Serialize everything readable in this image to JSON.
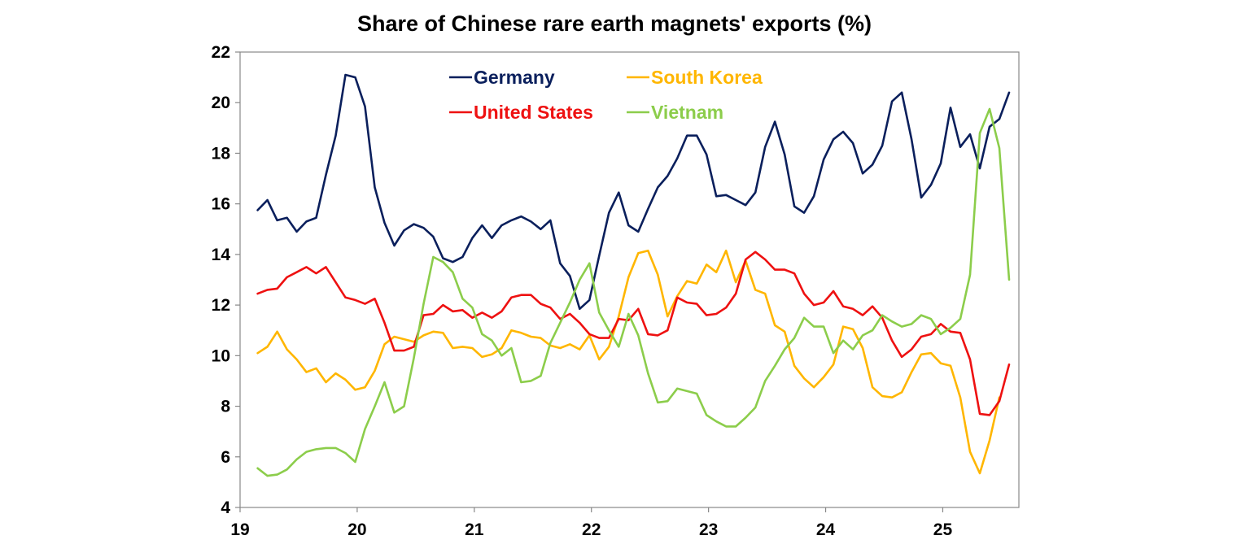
{
  "chart_data": {
    "type": "line",
    "title": "Share of Chinese rare earth magnets' exports (%)",
    "xlabel": "",
    "ylabel": "",
    "ylim": [
      4,
      22
    ],
    "yticks": [
      4,
      6,
      8,
      10,
      12,
      14,
      16,
      18,
      20,
      22
    ],
    "xlim": [
      19,
      25.65
    ],
    "xticks": [
      19,
      20,
      21,
      22,
      23,
      24,
      25
    ],
    "xtick_labels": [
      "19",
      "20",
      "21",
      "22",
      "23",
      "24",
      "25"
    ],
    "x_start": 19.15,
    "x_step": 0.08333,
    "legend_position": "top-center",
    "series": [
      {
        "name": "Germany",
        "color": "#0a1f5c",
        "values": [
          15.75,
          16.15,
          15.35,
          15.45,
          14.9,
          15.3,
          15.45,
          17.15,
          18.7,
          21.1,
          21.0,
          19.85,
          16.65,
          15.25,
          14.35,
          14.95,
          15.2,
          15.05,
          14.7,
          13.85,
          13.7,
          13.9,
          14.65,
          15.15,
          14.65,
          15.15,
          15.35,
          15.5,
          15.3,
          15.0,
          15.35,
          13.65,
          13.15,
          11.85,
          12.2,
          13.95,
          15.65,
          16.45,
          15.15,
          14.9,
          15.8,
          16.65,
          17.1,
          17.8,
          18.7,
          18.7,
          17.95,
          16.3,
          16.35,
          16.15,
          15.95,
          16.45,
          18.25,
          19.25,
          17.95,
          15.9,
          15.65,
          16.3,
          17.75,
          18.55,
          18.85,
          18.4,
          17.2,
          17.55,
          18.3,
          20.05,
          20.4,
          18.55,
          16.25,
          16.75,
          17.6,
          19.8,
          18.25,
          18.75,
          17.4,
          19.05,
          19.35,
          20.4
        ]
      },
      {
        "name": "South Korea",
        "color": "#ffb600",
        "values": [
          10.1,
          10.35,
          10.95,
          10.25,
          9.85,
          9.35,
          9.5,
          8.95,
          9.3,
          9.05,
          8.65,
          8.75,
          9.4,
          10.45,
          10.75,
          10.65,
          10.55,
          10.8,
          10.95,
          10.9,
          10.3,
          10.35,
          10.3,
          9.95,
          10.05,
          10.3,
          11.0,
          10.9,
          10.75,
          10.7,
          10.4,
          10.3,
          10.45,
          10.25,
          10.8,
          9.85,
          10.35,
          11.55,
          13.1,
          14.05,
          14.15,
          13.2,
          11.55,
          12.35,
          12.95,
          12.85,
          13.6,
          13.3,
          14.15,
          12.9,
          13.75,
          12.6,
          12.45,
          11.2,
          10.95,
          9.6,
          9.1,
          8.75,
          9.15,
          9.65,
          11.15,
          11.05,
          10.3,
          8.75,
          8.4,
          8.35,
          8.55,
          9.35,
          10.05,
          10.1,
          9.7,
          9.6,
          8.35,
          6.2,
          5.35,
          6.65,
          8.35
        ]
      },
      {
        "name": "United States",
        "color": "#ee1111",
        "values": [
          12.45,
          12.6,
          12.65,
          13.1,
          13.3,
          13.5,
          13.25,
          13.5,
          12.9,
          12.3,
          12.2,
          12.05,
          12.25,
          11.3,
          10.2,
          10.2,
          10.35,
          11.6,
          11.65,
          12.0,
          11.75,
          11.8,
          11.5,
          11.7,
          11.5,
          11.75,
          12.3,
          12.4,
          12.4,
          12.05,
          11.9,
          11.45,
          11.65,
          11.3,
          10.85,
          10.7,
          10.7,
          11.45,
          11.4,
          11.85,
          10.85,
          10.8,
          11.0,
          12.3,
          12.1,
          12.05,
          11.6,
          11.65,
          11.9,
          12.45,
          13.8,
          14.1,
          13.8,
          13.4,
          13.4,
          13.25,
          12.45,
          12.0,
          12.1,
          12.55,
          11.95,
          11.85,
          11.6,
          11.95,
          11.5,
          10.6,
          9.95,
          10.25,
          10.75,
          10.85,
          11.25,
          10.95,
          10.9,
          9.85,
          7.7,
          7.65,
          8.2,
          9.65
        ]
      },
      {
        "name": "Vietnam",
        "color": "#8ccd4b",
        "values": [
          5.55,
          5.25,
          5.3,
          5.5,
          5.9,
          6.2,
          6.3,
          6.35,
          6.35,
          6.15,
          5.8,
          7.1,
          8.0,
          8.95,
          7.75,
          8.0,
          9.9,
          12.05,
          13.9,
          13.7,
          13.3,
          12.25,
          11.9,
          10.85,
          10.6,
          10.0,
          10.3,
          8.95,
          9.0,
          9.2,
          10.5,
          11.3,
          12.1,
          13.0,
          13.65,
          11.7,
          11.0,
          10.35,
          11.65,
          10.8,
          9.3,
          8.15,
          8.2,
          8.7,
          8.6,
          8.5,
          7.65,
          7.4,
          7.2,
          7.2,
          7.55,
          7.95,
          9.0,
          9.6,
          10.25,
          10.7,
          11.5,
          11.15,
          11.15,
          10.1,
          10.6,
          10.25,
          10.8,
          11.0,
          11.6,
          11.35,
          11.15,
          11.25,
          11.6,
          11.45,
          10.85,
          11.1,
          11.45,
          13.2,
          18.8,
          19.75,
          18.2,
          13.0
        ]
      }
    ]
  }
}
